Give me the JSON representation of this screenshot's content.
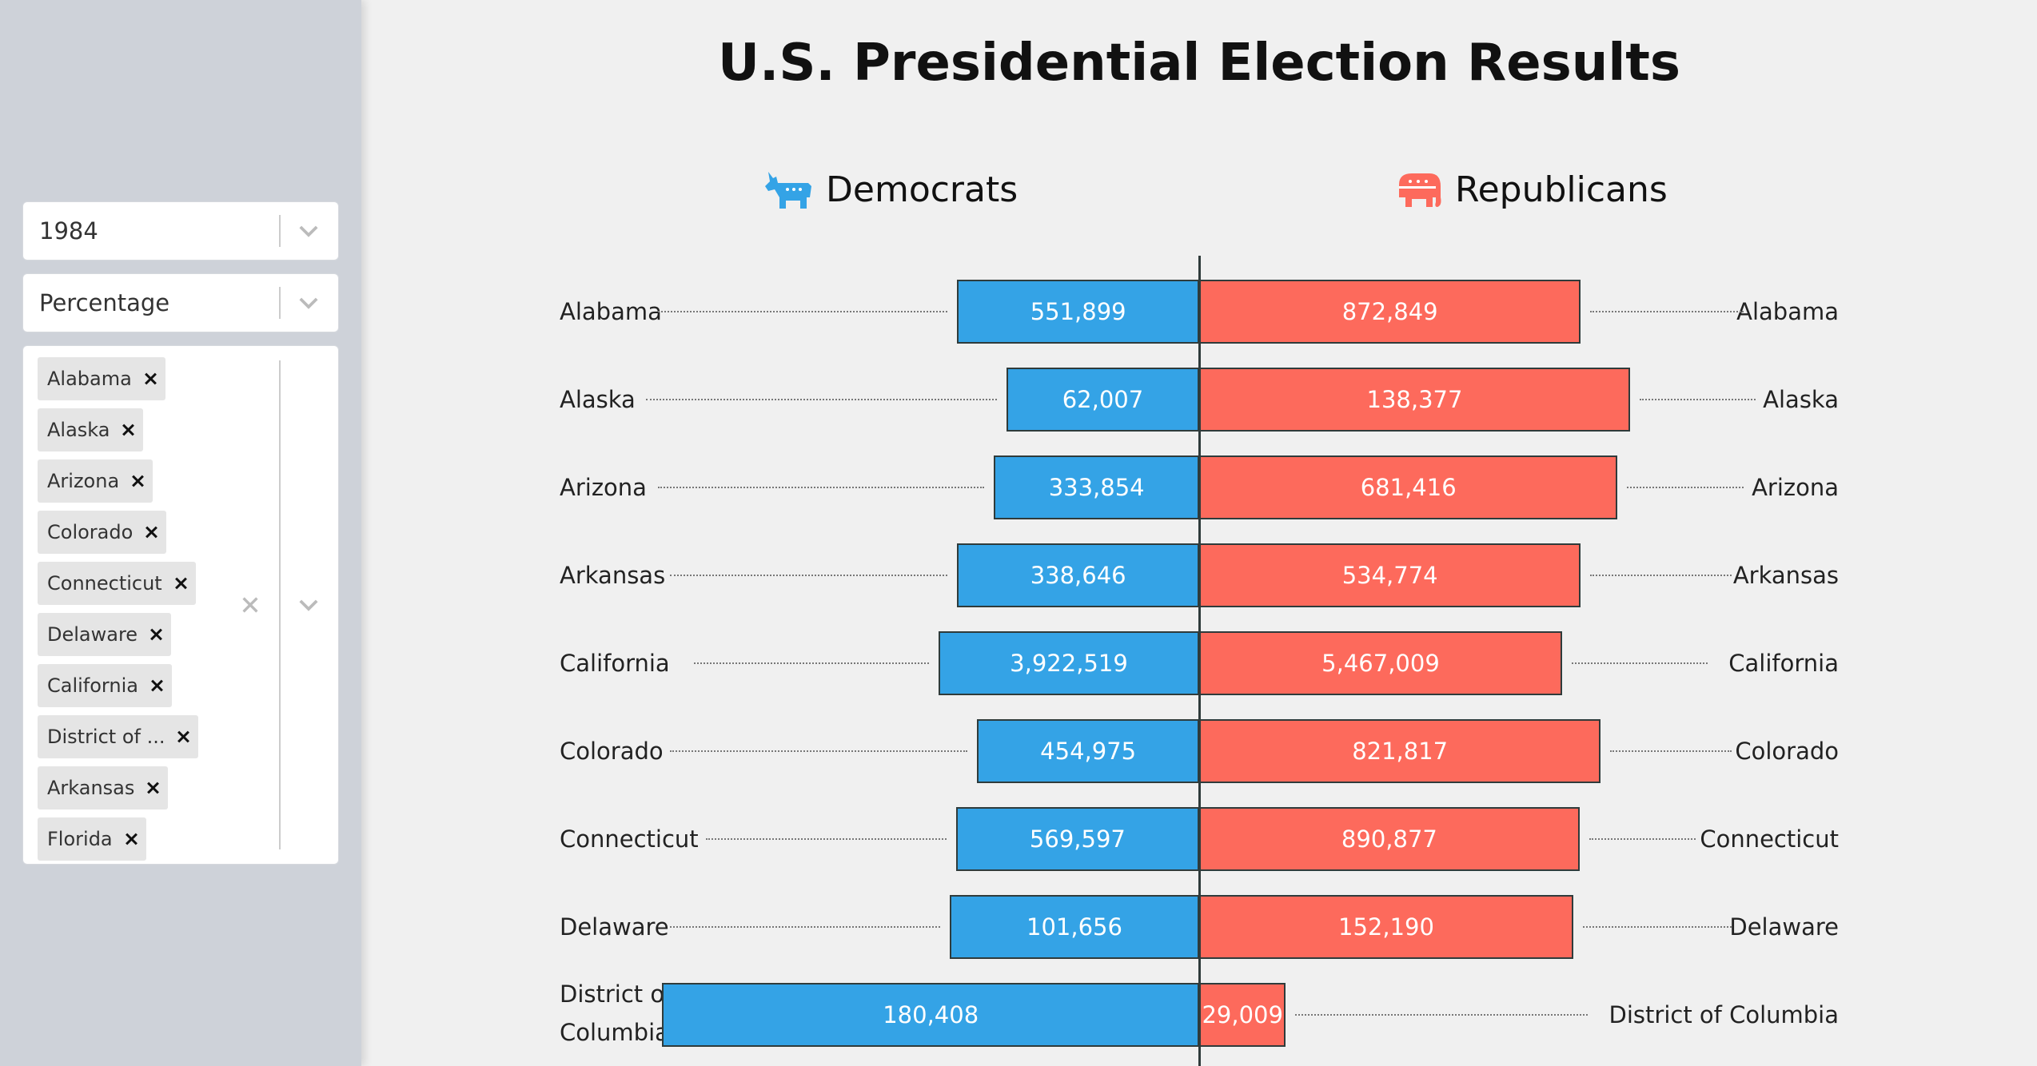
{
  "sidebar": {
    "year_select": {
      "value": "1984"
    },
    "metric_select": {
      "value": "Percentage"
    },
    "states_select": {
      "tags": [
        "Alabama",
        "Alaska",
        "Arizona",
        "Colorado",
        "Connecticut",
        "Delaware",
        "California",
        "District of ...",
        "Arkansas",
        "Florida"
      ]
    }
  },
  "header": {
    "title": "U.S. Presidential Election Results"
  },
  "legend": {
    "democrats": "Democrats",
    "republicans": "Republicans",
    "democrats_color": "#34a3e6",
    "republicans_color": "#fd6a5c",
    "democrats_icon": "donkey-icon",
    "republicans_icon": "elephant-icon"
  },
  "chart_data": {
    "type": "bar",
    "orientation": "horizontal-diverging",
    "categories": [
      "Alabama",
      "Alaska",
      "Arizona",
      "Arkansas",
      "California",
      "Colorado",
      "Connecticut",
      "Delaware",
      "District of Columbia"
    ],
    "left_labels": [
      "Alabama",
      "Alaska",
      "Arizona",
      "Arkansas",
      "California",
      "Colorado",
      "Connecticut",
      "Delaware",
      "District of Columbia"
    ],
    "series": [
      {
        "name": "Democrats",
        "values": [
          551899,
          62007,
          333854,
          338646,
          3922519,
          454975,
          569597,
          101656,
          180408
        ],
        "labels": [
          "551,899",
          "62,007",
          "333,854",
          "338,646",
          "3,922,519",
          "454,975",
          "569,597",
          "101,656",
          "180,408"
        ],
        "shares": [
          0.388,
          0.309,
          0.329,
          0.388,
          0.418,
          0.356,
          0.39,
          0.4,
          0.861
        ]
      },
      {
        "name": "Republicans",
        "values": [
          872849,
          138377,
          681416,
          534774,
          5467009,
          821817,
          890877,
          152190,
          29009
        ],
        "labels": [
          "872,849",
          "138,377",
          "681,416",
          "534,774",
          "5,467,009",
          "821,817",
          "890,877",
          "152,190",
          "29,009"
        ],
        "shares": [
          0.612,
          0.691,
          0.671,
          0.612,
          0.582,
          0.644,
          0.61,
          0.6,
          0.139
        ]
      }
    ]
  }
}
